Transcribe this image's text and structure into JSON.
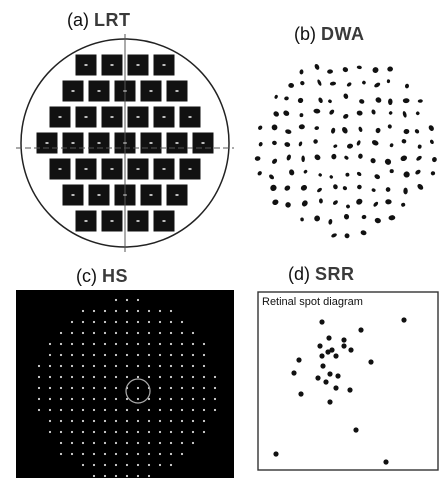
{
  "panels": {
    "a": {
      "prefix": "(a)",
      "name": "LRT"
    },
    "b": {
      "prefix": "(b)",
      "name": "DWA"
    },
    "c": {
      "prefix": "(c)",
      "name": "HS"
    },
    "d": {
      "prefix": "(d)",
      "name": "SRR",
      "inner_title": "Retinal spot diagram"
    }
  }
}
